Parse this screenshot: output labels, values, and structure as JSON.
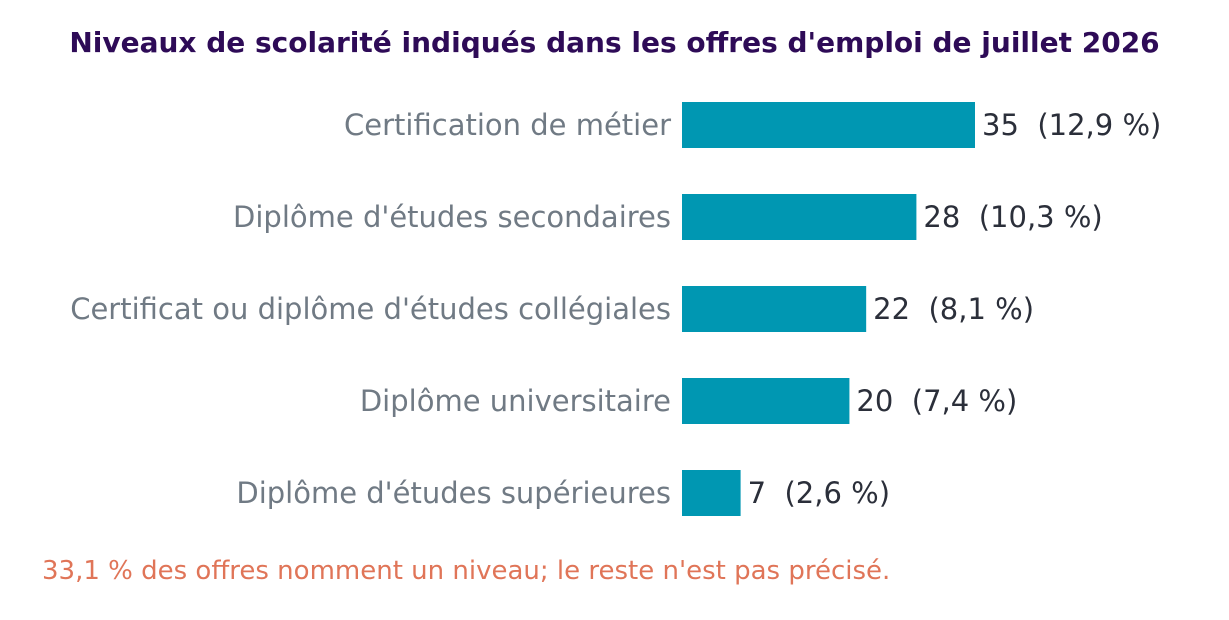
{
  "chart_data": {
    "type": "bar",
    "orientation": "horizontal",
    "title": "Niveaux de scolarité indiqués dans les offres d'emploi de juillet 2026",
    "categories": [
      "Certification de métier",
      "Diplôme d'études secondaires",
      "Certificat ou diplôme d'études collégiales",
      "Diplôme universitaire",
      "Diplôme d'études supérieures"
    ],
    "values": [
      35,
      28,
      22,
      20,
      7
    ],
    "data_labels": [
      "35  (12,9 %)",
      "28  (10,3 %)",
      "22  (8,1 %)",
      "20  (7,4 %)",
      "7  (2,6 %)"
    ],
    "xlim": [
      0,
      35
    ],
    "grid": false,
    "legend": "none",
    "bar_color": "#0097b2",
    "note": "33,1 % des offres nomment un niveau; le reste n'est pas précisé."
  },
  "colors": {
    "title": "#2e0b57",
    "category_label": "#707a84",
    "value_label": "#2b2f3a",
    "note": "#e07558",
    "bar": "#0097b2"
  }
}
